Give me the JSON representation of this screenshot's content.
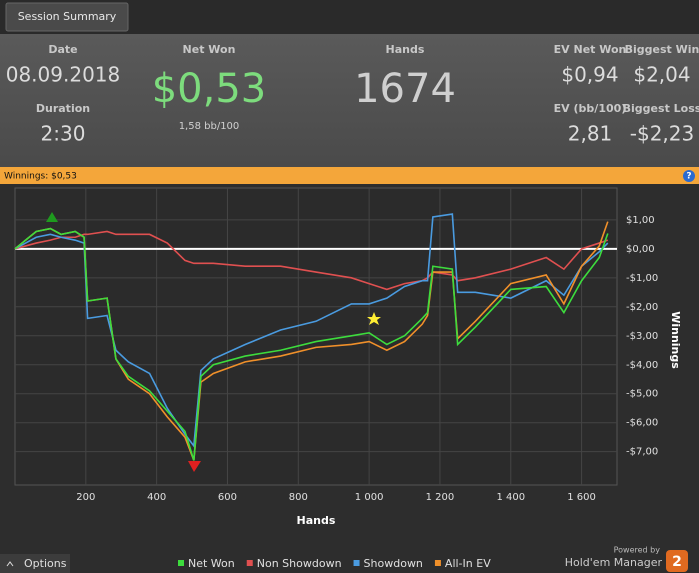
{
  "tab": "Session Summary",
  "stats": {
    "date_label": "Date",
    "date": "08.09.2018",
    "duration_label": "Duration",
    "duration": "2:30",
    "net_won_label": "Net Won",
    "net_won": "$0,53",
    "bb100": "1,58 bb/100",
    "hands_label": "Hands",
    "hands": "1674",
    "ev_net_won_label": "EV Net Won",
    "ev_net_won": "$0,94",
    "biggest_win_label": "Biggest Win",
    "biggest_win": "$2,04",
    "ev_bb_label": "EV (bb/100)",
    "ev_bb": "2,81",
    "biggest_loss_label": "Biggest Loss",
    "biggest_loss": "-$2,23"
  },
  "bar": {
    "title": "Winnings: $0,53"
  },
  "chart_data": {
    "type": "line",
    "xlabel": "Hands",
    "ylabel": "Winnings",
    "xlim": [
      0,
      1700
    ],
    "xticks": [
      200,
      400,
      600,
      800,
      {
        "value": 1000,
        "label": "1 000"
      },
      {
        "value": 1200,
        "label": "1 200"
      },
      {
        "value": 1400,
        "label": "1 400"
      },
      {
        "value": 1600,
        "label": "1 600"
      }
    ],
    "ylim": [
      -8.15,
      2.1
    ],
    "yticks": [
      {
        "value": 1,
        "label": "$1,00"
      },
      {
        "value": 0,
        "label": "$0,00"
      },
      {
        "value": -1,
        "label": "-$1,00"
      },
      {
        "value": -2,
        "label": "-$2,00"
      },
      {
        "value": -3,
        "label": "-$3,00"
      },
      {
        "value": -4,
        "label": "-$4,00"
      },
      {
        "value": -5,
        "label": "-$5,00"
      },
      {
        "value": -6,
        "label": "-$6,00"
      },
      {
        "value": -7,
        "label": "-$7,00"
      }
    ],
    "grid": true,
    "x": [
      0,
      30,
      60,
      100,
      130,
      170,
      195,
      205,
      260,
      285,
      320,
      380,
      430,
      480,
      505,
      525,
      560,
      650,
      750,
      850,
      950,
      1000,
      1050,
      1100,
      1150,
      1165,
      1180,
      1235,
      1250,
      1300,
      1400,
      1500,
      1550,
      1600,
      1650,
      1674
    ],
    "series": [
      {
        "name": "Net Won",
        "color": "#3ddc3d",
        "values": [
          0,
          0.3,
          0.6,
          0.7,
          0.5,
          0.6,
          0.4,
          -1.8,
          -1.7,
          -3.8,
          -4.4,
          -4.9,
          -5.6,
          -6.3,
          -7.3,
          -4.4,
          -4.0,
          -3.7,
          -3.5,
          -3.2,
          -3.0,
          -2.9,
          -3.3,
          -3.0,
          -2.4,
          -2.2,
          -0.6,
          -0.7,
          -3.3,
          -2.7,
          -1.4,
          -1.3,
          -2.2,
          -1.1,
          -0.3,
          0.53
        ]
      },
      {
        "name": "Non Showdown",
        "color": "#e05050",
        "values": [
          0,
          0.1,
          0.2,
          0.3,
          0.4,
          0.4,
          0.5,
          0.5,
          0.6,
          0.5,
          0.5,
          0.5,
          0.2,
          -0.4,
          -0.5,
          -0.5,
          -0.5,
          -0.6,
          -0.6,
          -0.8,
          -1.0,
          -1.2,
          -1.4,
          -1.2,
          -1.1,
          -1.0,
          -0.8,
          -0.9,
          -1.1,
          -1.0,
          -0.7,
          -0.3,
          -0.7,
          0.0,
          0.2,
          0.3
        ]
      },
      {
        "name": "Showdown",
        "color": "#4a9be0",
        "values": [
          0,
          0.2,
          0.4,
          0.5,
          0.4,
          0.3,
          0.2,
          -2.4,
          -2.3,
          -3.5,
          -3.9,
          -4.3,
          -5.5,
          -6.4,
          -6.8,
          -4.2,
          -3.8,
          -3.3,
          -2.8,
          -2.5,
          -1.9,
          -1.9,
          -1.7,
          -1.3,
          -1.1,
          -1.1,
          1.1,
          1.2,
          -1.5,
          -1.5,
          -1.7,
          -1.1,
          -1.6,
          -0.6,
          -0.1,
          0.2
        ]
      },
      {
        "name": "All-In EV",
        "color": "#f0902a",
        "values": [
          0,
          0.3,
          0.6,
          0.7,
          0.5,
          0.6,
          0.4,
          -1.8,
          -1.7,
          -3.8,
          -4.5,
          -5.0,
          -5.8,
          -6.5,
          -7.3,
          -4.6,
          -4.3,
          -3.9,
          -3.7,
          -3.4,
          -3.3,
          -3.2,
          -3.5,
          -3.2,
          -2.6,
          -2.3,
          -0.8,
          -0.8,
          -3.1,
          -2.5,
          -1.2,
          -0.9,
          -1.9,
          -0.6,
          0.1,
          0.94
        ]
      }
    ]
  },
  "footer": {
    "options": "Options",
    "powered": "Powered by",
    "brand": "Hold'em Manager",
    "brand_num": "2"
  }
}
